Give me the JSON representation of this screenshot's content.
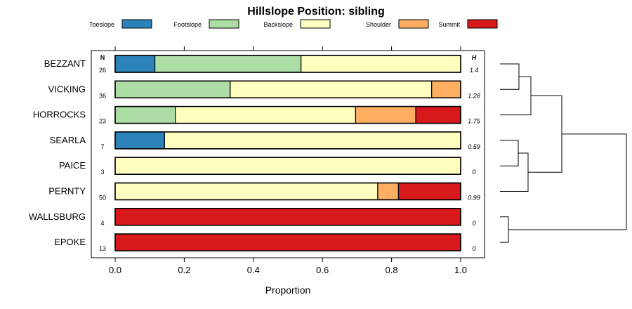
{
  "chart_data": {
    "type": "bar",
    "orientation": "horizontal",
    "stacked": true,
    "title": "Hillslope Position: sibling",
    "xlabel": "Proportion",
    "ylabel": "",
    "xlim": [
      0,
      1
    ],
    "xticks": [
      "0.0",
      "0.2",
      "0.4",
      "0.6",
      "0.8",
      "1.0"
    ],
    "legend_position": "top",
    "n_header": "N",
    "h_header": "H",
    "categories": [
      "BEZZANT",
      "VICKING",
      "HORROCKS",
      "SEARLA",
      "PAICE",
      "PERNTY",
      "WALLSBURG",
      "EPOKE"
    ],
    "n": [
      "26",
      "36",
      "23",
      "7",
      "3",
      "50",
      "4",
      "13"
    ],
    "h": [
      "1.4",
      "1.28",
      "1.75",
      "0.59",
      "0",
      "0.99",
      "0",
      "0"
    ],
    "series": [
      {
        "name": "Toeslope",
        "color": "#2B83BA",
        "values": [
          0.115,
          0,
          0,
          0.143,
          0,
          0,
          0,
          0
        ]
      },
      {
        "name": "Footslope",
        "color": "#ABDDA4",
        "values": [
          0.423,
          0.333,
          0.174,
          0,
          0,
          0,
          0,
          0
        ]
      },
      {
        "name": "Backslope",
        "color": "#FFFFBF",
        "values": [
          0.462,
          0.583,
          0.522,
          0.857,
          1.0,
          0.76,
          0,
          0
        ]
      },
      {
        "name": "Shoulder",
        "color": "#FDAE61",
        "values": [
          0,
          0.084,
          0.174,
          0,
          0,
          0.06,
          0,
          0
        ]
      },
      {
        "name": "Summit",
        "color": "#D7191C",
        "values": [
          0,
          0,
          0.13,
          0,
          0,
          0.18,
          1.0,
          1.0
        ]
      }
    ],
    "dendrogram": {
      "merges": [
        [
          0,
          1
        ],
        [
          6,
          7
        ],
        [
          3,
          4
        ],
        [
          -1,
          2
        ],
        [
          -3,
          5
        ],
        [
          -4,
          -5
        ],
        [
          -6,
          -2
        ]
      ]
    }
  }
}
